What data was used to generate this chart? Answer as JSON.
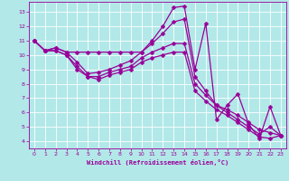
{
  "xlabel": "Windchill (Refroidissement éolien,°C)",
  "bg_color": "#b2e8e8",
  "grid_color": "#ffffff",
  "line_color": "#990099",
  "markersize": 2.5,
  "linewidth": 0.9,
  "xlim": [
    -0.5,
    23.5
  ],
  "ylim": [
    3.5,
    13.7
  ],
  "xticks": [
    0,
    1,
    2,
    3,
    4,
    5,
    6,
    7,
    8,
    9,
    10,
    11,
    12,
    13,
    14,
    15,
    16,
    17,
    18,
    19,
    20,
    21,
    22,
    23
  ],
  "yticks": [
    4,
    5,
    6,
    7,
    8,
    9,
    10,
    11,
    12,
    13
  ],
  "series": [
    [
      11.0,
      10.3,
      10.5,
      10.2,
      10.2,
      10.2,
      10.2,
      10.2,
      10.2,
      10.2,
      10.2,
      11.0,
      12.0,
      13.3,
      13.4,
      9.0,
      12.2,
      5.5,
      6.5,
      7.3,
      5.2,
      4.2,
      6.4,
      4.4
    ],
    [
      11.0,
      10.3,
      10.5,
      10.2,
      9.5,
      8.7,
      8.8,
      9.0,
      9.3,
      9.6,
      10.2,
      10.8,
      11.5,
      12.3,
      12.5,
      8.5,
      7.5,
      6.5,
      6.0,
      5.5,
      5.0,
      4.5,
      5.0,
      4.4
    ],
    [
      11.0,
      10.3,
      10.3,
      10.0,
      9.2,
      8.5,
      8.5,
      8.8,
      9.0,
      9.2,
      9.8,
      10.2,
      10.5,
      10.8,
      10.8,
      8.0,
      7.2,
      6.5,
      6.2,
      5.8,
      5.3,
      4.8,
      4.6,
      4.4
    ],
    [
      11.0,
      10.3,
      10.3,
      10.0,
      9.0,
      8.5,
      8.3,
      8.6,
      8.8,
      9.0,
      9.5,
      9.8,
      10.0,
      10.2,
      10.2,
      7.5,
      6.8,
      6.2,
      5.8,
      5.3,
      4.8,
      4.3,
      4.2,
      4.4
    ]
  ]
}
